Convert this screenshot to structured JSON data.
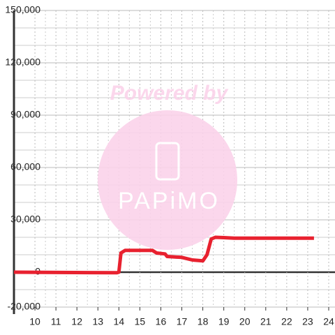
{
  "chart_data": {
    "type": "line",
    "watermark": {
      "title": "Powered by",
      "brand": "PAPiMO"
    },
    "x": [
      9,
      13.9,
      14.0,
      14.1,
      14.3,
      15.6,
      15.8,
      16.2,
      16.3,
      17.0,
      17.5,
      18.0,
      18.2,
      18.4,
      18.6,
      19.0,
      19.5,
      23.3
    ],
    "series": [
      {
        "color": "#e8212f",
        "values": [
          0,
          -300,
          0,
          11000,
          12500,
          12500,
          11000,
          10500,
          9000,
          8500,
          7000,
          6500,
          10000,
          19000,
          20000,
          19800,
          19500,
          19500
        ]
      }
    ],
    "xlim": [
      9,
      24.3
    ],
    "xticks": [
      10,
      11,
      12,
      13,
      14,
      15,
      16,
      17,
      18,
      19,
      20,
      21,
      22,
      23,
      24
    ],
    "ylim": [
      -20000,
      150000
    ],
    "yticks": [
      {
        "value": -20000,
        "label": "-20,000"
      },
      0,
      {
        "value": 30000,
        "label": "30,000"
      },
      {
        "value": 60000,
        "label": "60,000"
      },
      {
        "value": 90000,
        "label": "90,000"
      },
      {
        "value": 120000,
        "label": "120,000"
      },
      {
        "value": 150000,
        "label": "150,000"
      }
    ],
    "grid": true
  }
}
